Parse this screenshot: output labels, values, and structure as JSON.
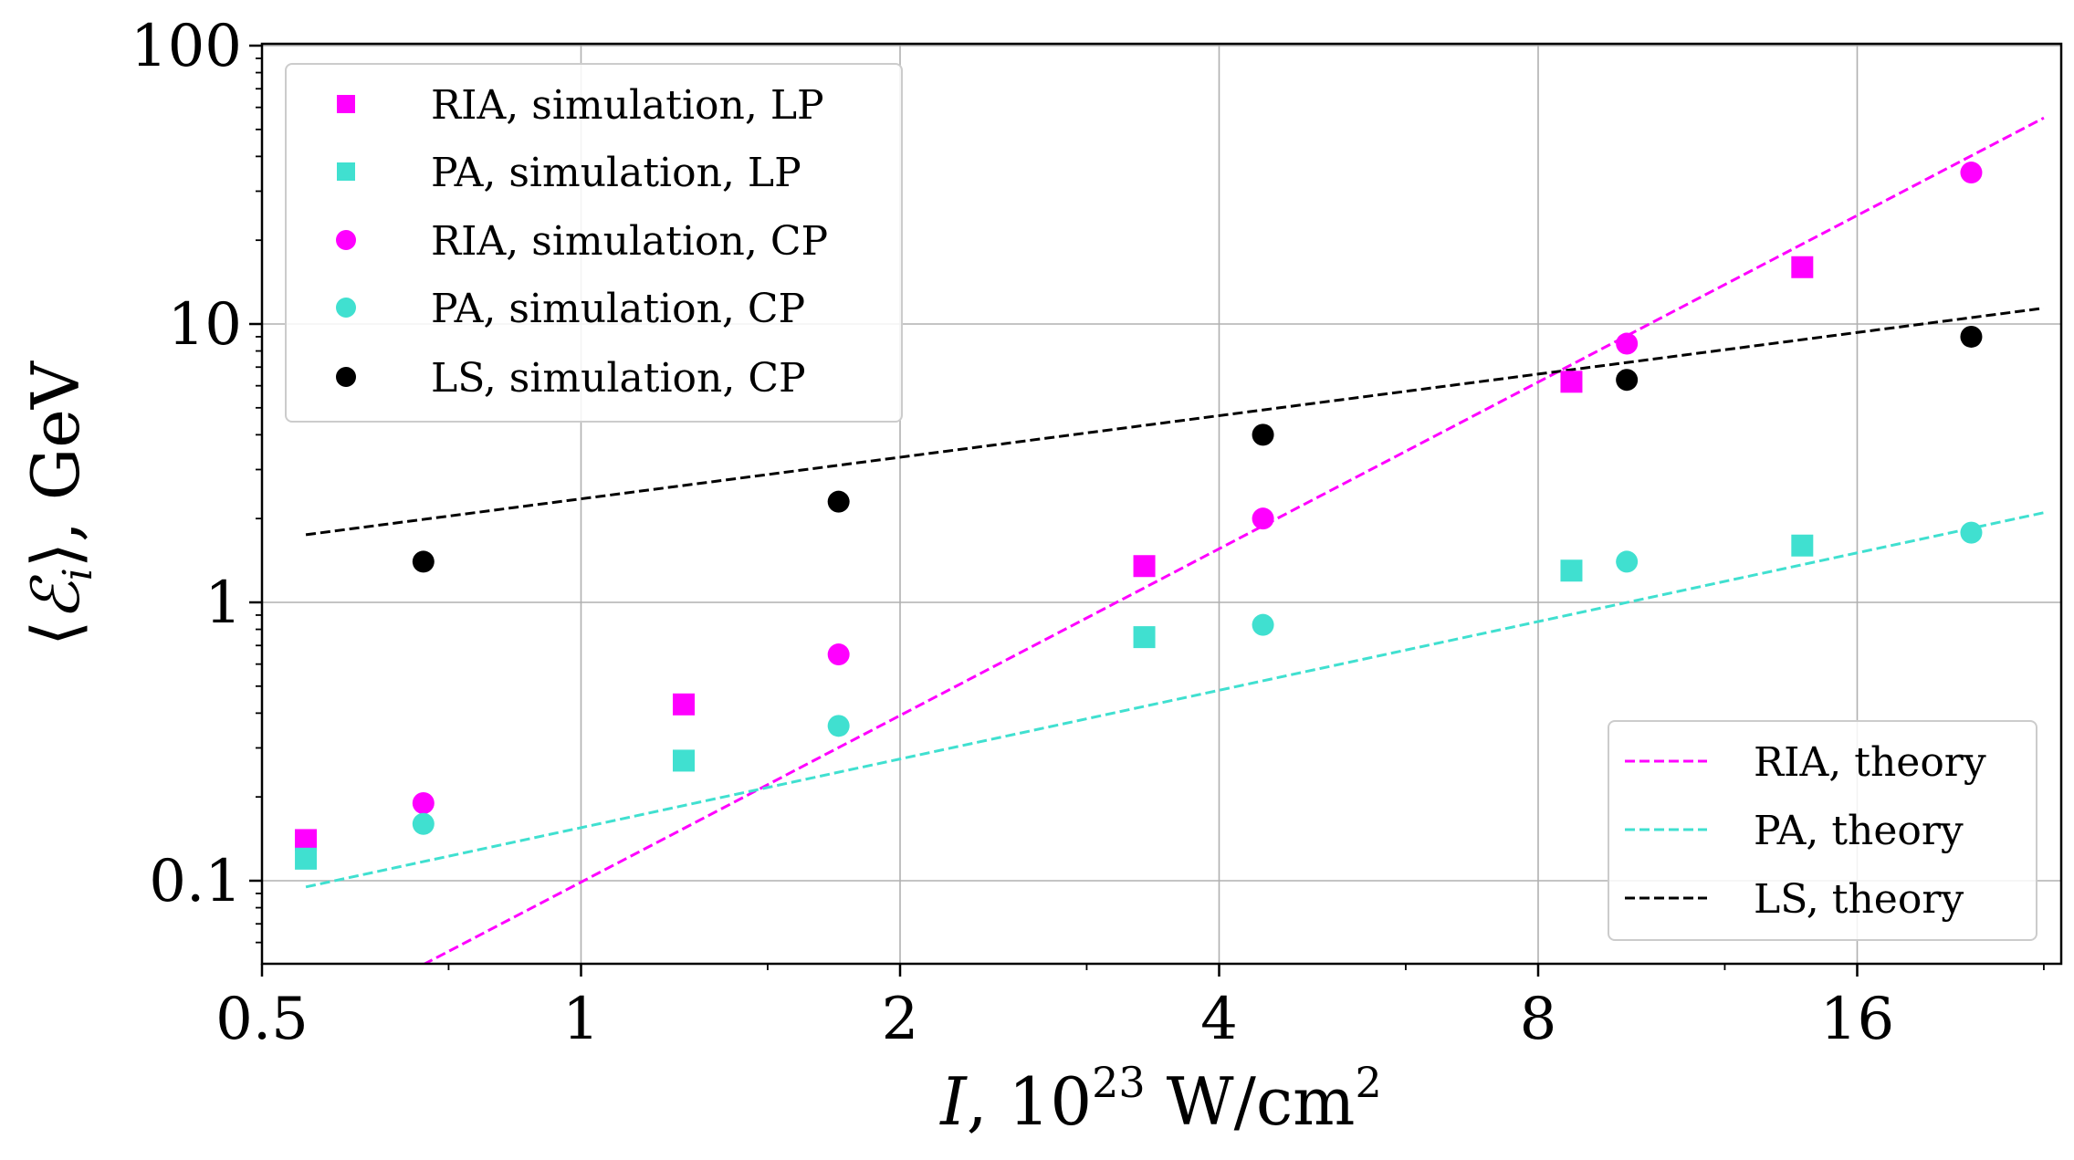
{
  "chart_data": {
    "type": "scatter",
    "xscale": "log2",
    "yscale": "log10",
    "xlim": [
      0.5,
      28
    ],
    "ylim": [
      0.05,
      100
    ],
    "xticks": [
      0.5,
      1,
      2,
      4,
      8,
      16
    ],
    "xtick_labels": [
      "0.5",
      "1",
      "2",
      "4",
      "8",
      "16"
    ],
    "yticks": [
      0.1,
      1,
      10,
      100
    ],
    "ytick_labels": [
      "0.1",
      "1",
      "10",
      "100"
    ],
    "grid": true,
    "xlabel": {
      "var": "I",
      "sep": ", ",
      "base": "10",
      "exp": "23",
      "unit": " W/cm",
      "unit_exp": "2"
    },
    "ylabel": {
      "lhs": "⟨",
      "sym": "ℰ",
      "sub": "i",
      "rhs": "⟩",
      "suffix": ", GeV"
    },
    "legend_top_left": [
      "RIA, simulation, LP",
      "PA, simulation, LP",
      "RIA, simulation, CP",
      "PA, simulation, CP",
      "LS, simulation, CP"
    ],
    "legend_bottom_right": [
      "RIA, theory",
      "PA, theory",
      "LS, theory"
    ],
    "series": [
      {
        "name": "RIA, simulation, LP",
        "marker": "square",
        "color": "#ff00ff",
        "points": [
          [
            0.55,
            0.14
          ],
          [
            1.25,
            0.43
          ],
          [
            3.4,
            1.35
          ],
          [
            8.6,
            6.2
          ],
          [
            14.2,
            16
          ]
        ]
      },
      {
        "name": "PA, simulation, LP",
        "marker": "square",
        "color": "#40e0d0",
        "points": [
          [
            0.55,
            0.12
          ],
          [
            1.25,
            0.27
          ],
          [
            3.4,
            0.75
          ],
          [
            8.6,
            1.3
          ],
          [
            14.2,
            1.6
          ]
        ]
      },
      {
        "name": "RIA, simulation, CP",
        "marker": "circle",
        "color": "#ff00ff",
        "points": [
          [
            0.71,
            0.19
          ],
          [
            1.75,
            0.65
          ],
          [
            4.4,
            2.0
          ],
          [
            9.7,
            8.5
          ],
          [
            20.5,
            35
          ]
        ]
      },
      {
        "name": "PA, simulation, CP",
        "marker": "circle",
        "color": "#40e0d0",
        "points": [
          [
            0.71,
            0.16
          ],
          [
            1.75,
            0.36
          ],
          [
            4.4,
            0.83
          ],
          [
            9.7,
            1.4
          ],
          [
            20.5,
            1.78
          ]
        ]
      },
      {
        "name": "LS, simulation, CP",
        "marker": "circle",
        "color": "#000000",
        "points": [
          [
            0.71,
            1.4
          ],
          [
            1.75,
            2.3
          ],
          [
            4.4,
            4.0
          ],
          [
            9.7,
            6.3
          ],
          [
            20.5,
            9.0
          ]
        ]
      },
      {
        "name": "RIA, theory",
        "line": "dashed",
        "color": "#ff00ff",
        "points": [
          [
            0.71,
            0.05
          ],
          [
            24,
            55
          ]
        ]
      },
      {
        "name": "PA, theory",
        "line": "dashed",
        "color": "#40e0d0",
        "points": [
          [
            0.55,
            0.095
          ],
          [
            24,
            2.1
          ]
        ]
      },
      {
        "name": "LS, theory",
        "line": "dashed",
        "color": "#000000",
        "points": [
          [
            0.55,
            1.75
          ],
          [
            24,
            11.4
          ]
        ]
      }
    ]
  }
}
